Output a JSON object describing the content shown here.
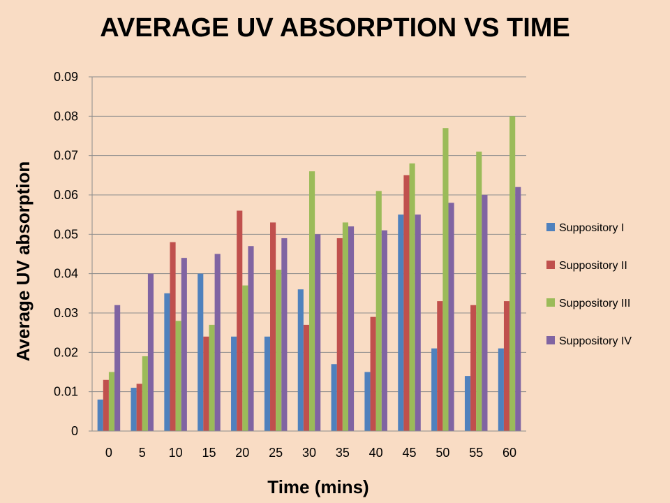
{
  "chart_data": {
    "type": "bar",
    "title": "AVERAGE UV ABSORPTION VS TIME",
    "xlabel": "Time (mins)",
    "ylabel": "Average UV absorption",
    "categories": [
      "0",
      "5",
      "10",
      "15",
      "20",
      "25",
      "30",
      "35",
      "40",
      "45",
      "50",
      "55",
      "60"
    ],
    "ylim": [
      0,
      0.09
    ],
    "yticks": [
      "0",
      "0.01",
      "0.02",
      "0.03",
      "0.04",
      "0.05",
      "0.06",
      "0.07",
      "0.08",
      "0.09"
    ],
    "grid": true,
    "legend_position": "right",
    "series": [
      {
        "name": "Suppository I",
        "color": "#4f81bd",
        "values": [
          0.008,
          0.011,
          0.035,
          0.04,
          0.024,
          0.024,
          0.036,
          0.017,
          0.015,
          0.055,
          0.021,
          0.014,
          0.021
        ]
      },
      {
        "name": "Suppository II",
        "color": "#c0504d",
        "values": [
          0.013,
          0.012,
          0.048,
          0.024,
          0.056,
          0.053,
          0.027,
          0.049,
          0.029,
          0.065,
          0.033,
          0.032,
          0.033
        ]
      },
      {
        "name": "Suppository III",
        "color": "#9bbb59",
        "values": [
          0.015,
          0.019,
          0.028,
          0.027,
          0.037,
          0.041,
          0.066,
          0.053,
          0.061,
          0.068,
          0.077,
          0.071,
          0.08
        ]
      },
      {
        "name": "Suppository IV",
        "color": "#8064a2",
        "values": [
          0.032,
          0.04,
          0.044,
          0.045,
          0.047,
          0.049,
          0.05,
          0.052,
          0.051,
          0.055,
          0.058,
          0.06,
          0.062
        ]
      }
    ]
  }
}
